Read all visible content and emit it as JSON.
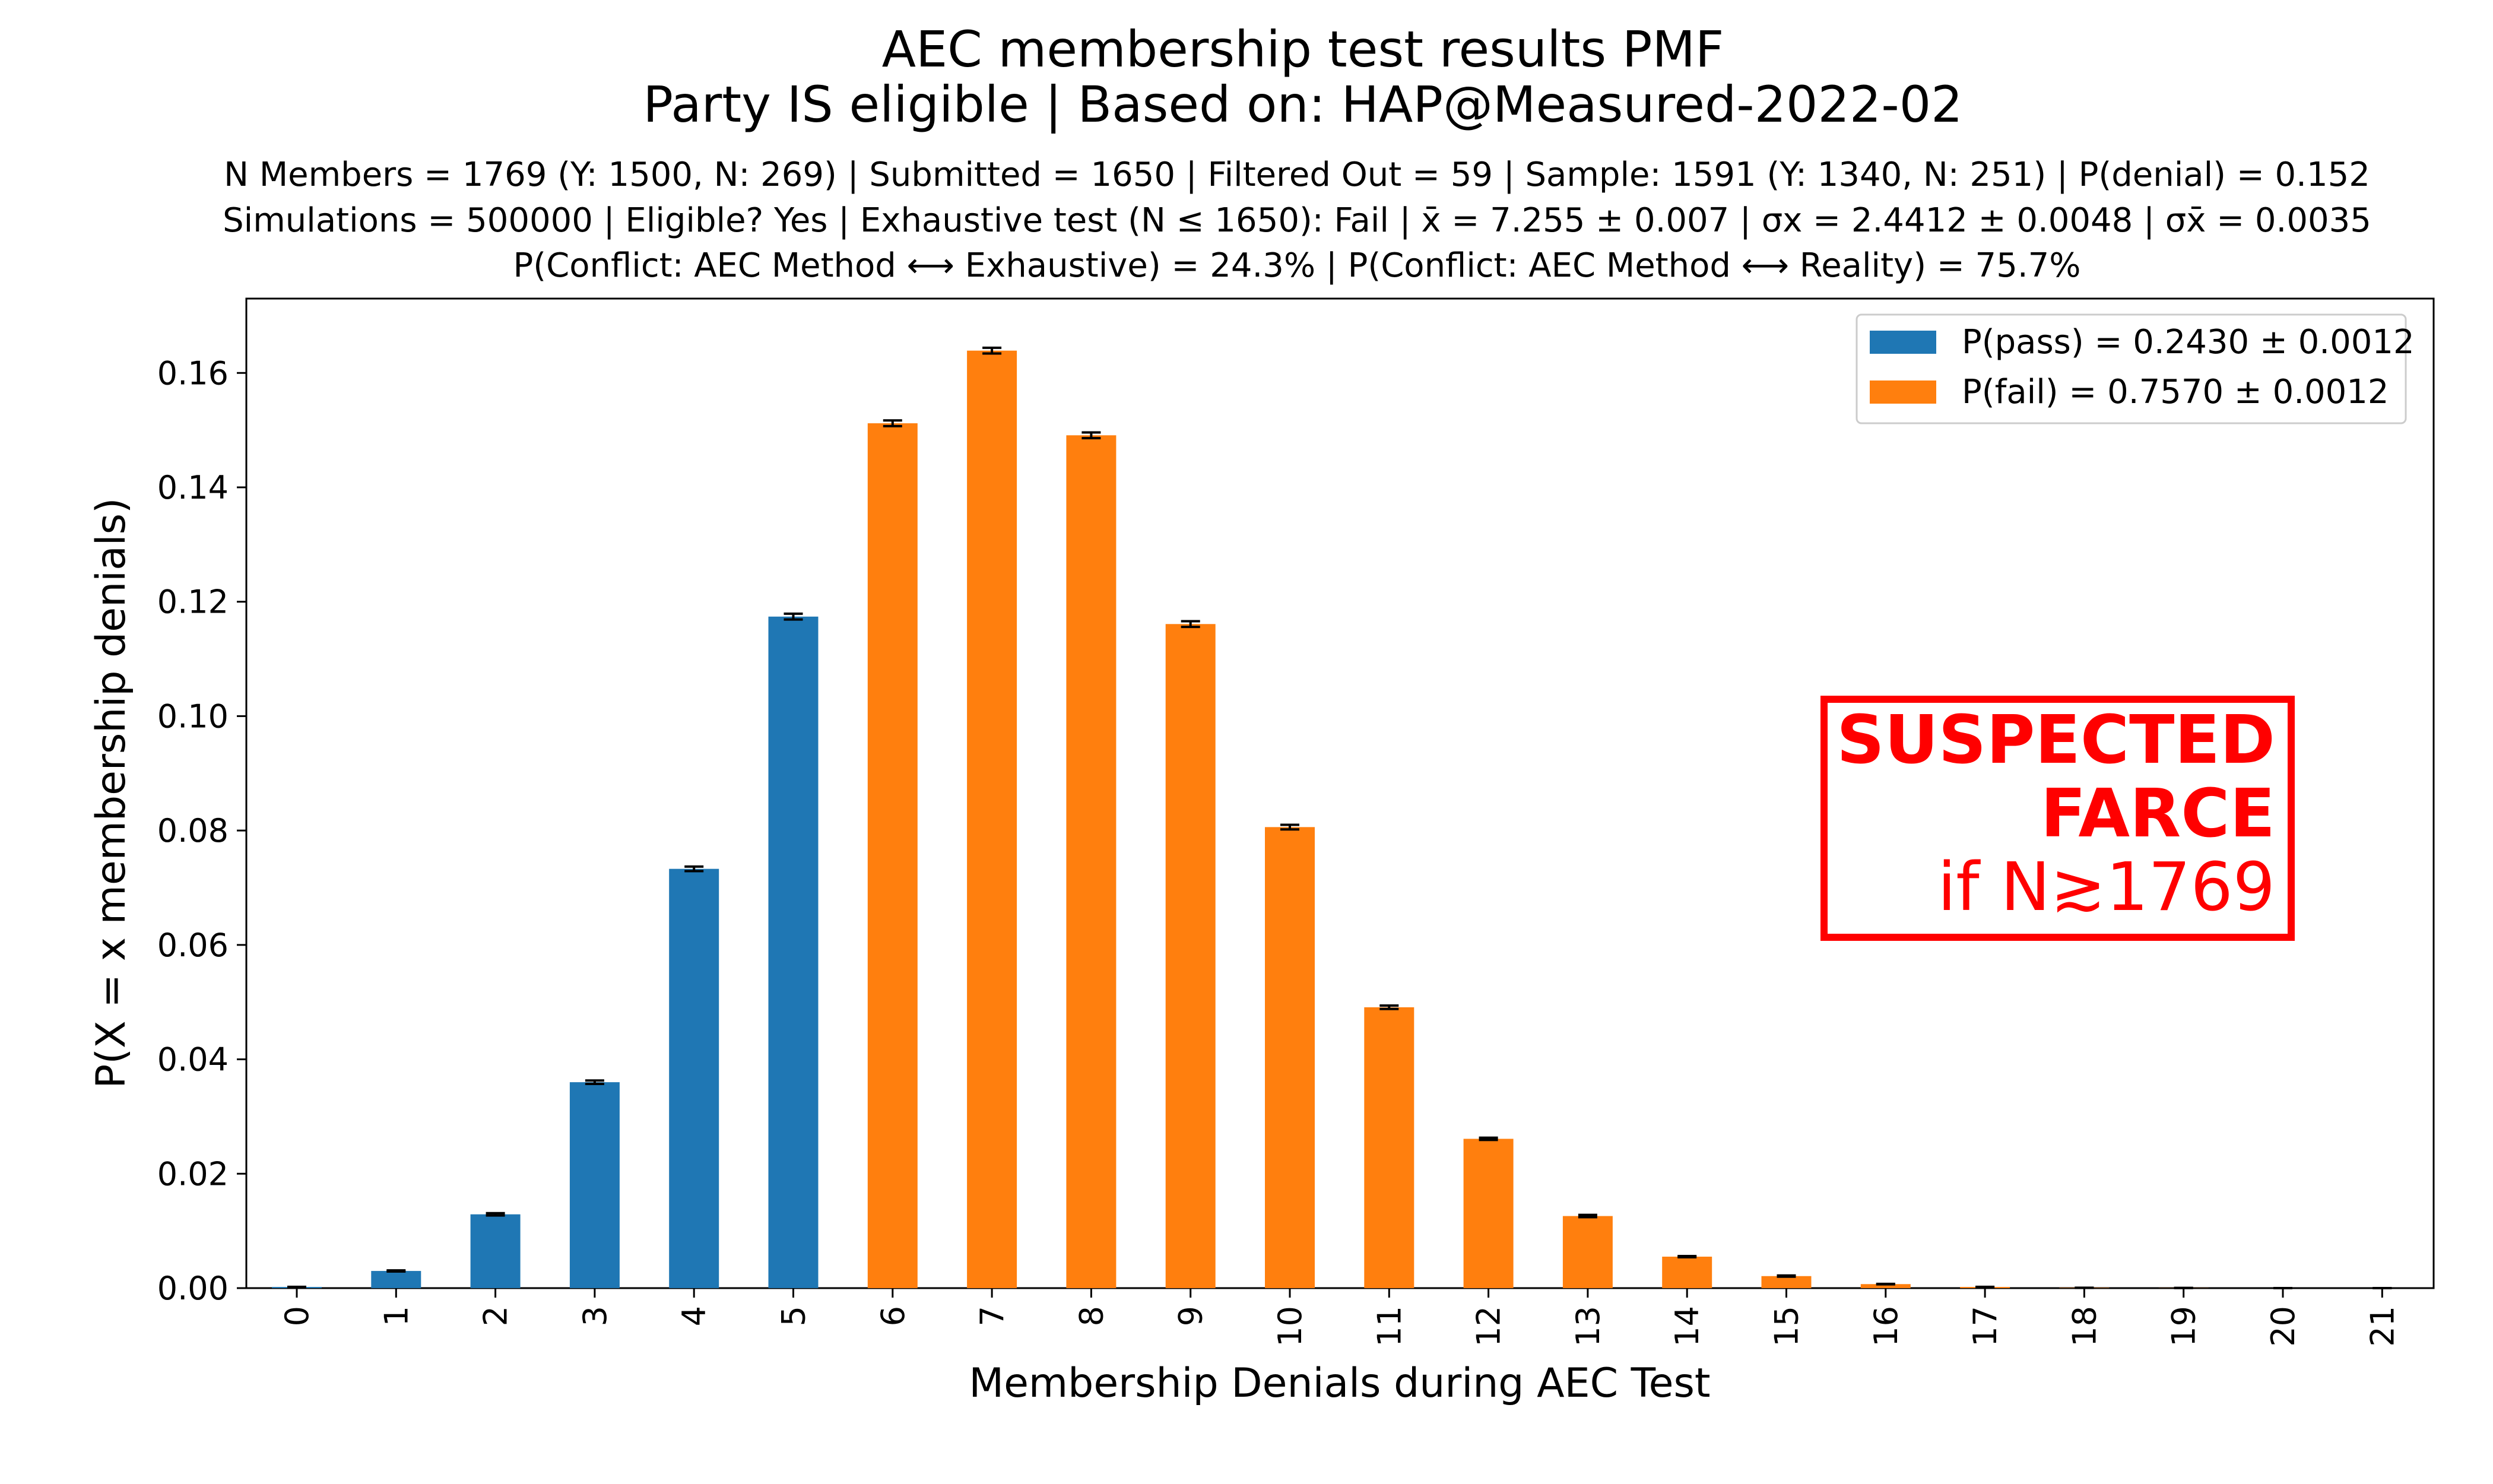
{
  "chart_data": {
    "type": "bar",
    "title_lines": [
      "AEC membership test results PMF",
      "Party IS eligible | Based on: HAP@Measured-2022-02"
    ],
    "subtitle_lines": [
      "N Members = 1769 (Y: 1500, N: 269) | Submitted = 1650 | Filtered Out = 59 | Sample: 1591 (Y: 1340, N: 251) | P(denial) = 0.152",
      "Simulations = 500000 | Eligible? Yes | Exhaustive test (N ≤ 1650): Fail | x̄ = 7.255 ± 0.007 | σx = 2.4412 ± 0.0048 | σx̄ = 0.0035",
      "P(Conflict: AEC Method ⟷ Exhaustive) = 24.3% | P(Conflict: AEC Method ⟷ Reality) = 75.7%"
    ],
    "xlabel": "Membership Denials during AEC Test",
    "ylabel": "P(X = x membership denials)",
    "ylim": [
      0,
      0.173
    ],
    "yticks": [
      "0.00",
      "0.02",
      "0.04",
      "0.06",
      "0.08",
      "0.10",
      "0.12",
      "0.14",
      "0.16"
    ],
    "categories": [
      "0",
      "1",
      "2",
      "3",
      "4",
      "5",
      "6",
      "7",
      "8",
      "9",
      "10",
      "11",
      "12",
      "13",
      "14",
      "15",
      "16",
      "17",
      "18",
      "19",
      "20",
      "21"
    ],
    "values": [
      0.0002,
      0.003,
      0.0129,
      0.036,
      0.0733,
      0.1174,
      0.1512,
      0.1639,
      0.1491,
      0.1161,
      0.0806,
      0.0491,
      0.0261,
      0.0126,
      0.0055,
      0.0021,
      0.0007,
      0.0002,
      5e-05,
      2e-05,
      0.0,
      0.0
    ],
    "errors": [
      2e-05,
      0.0001,
      0.0002,
      0.0003,
      0.0004,
      0.0005,
      0.0005,
      0.0005,
      0.0005,
      0.0005,
      0.0004,
      0.0003,
      0.0002,
      0.0002,
      0.0001,
      0.0001,
      4e-05,
      2e-05,
      1e-05,
      0.0,
      0.0,
      0.0
    ],
    "series": [
      {
        "name": "P(pass) = 0.2430 ± 0.0012",
        "color": "#1f77b4",
        "categories": [
          "0",
          "1",
          "2",
          "3",
          "4",
          "5"
        ]
      },
      {
        "name": "P(fail) = 0.7570 ± 0.0012",
        "color": "#ff7f0e",
        "categories": [
          "6",
          "7",
          "8",
          "9",
          "10",
          "11",
          "12",
          "13",
          "14",
          "15",
          "16",
          "17",
          "18",
          "19",
          "20",
          "21"
        ]
      }
    ],
    "legend": {
      "placement": "top-right"
    },
    "annotation": {
      "lines": [
        "SUSPECTED",
        "FARCE",
        "if N≳1769"
      ],
      "color": "#ff0000"
    },
    "grid": false
  }
}
